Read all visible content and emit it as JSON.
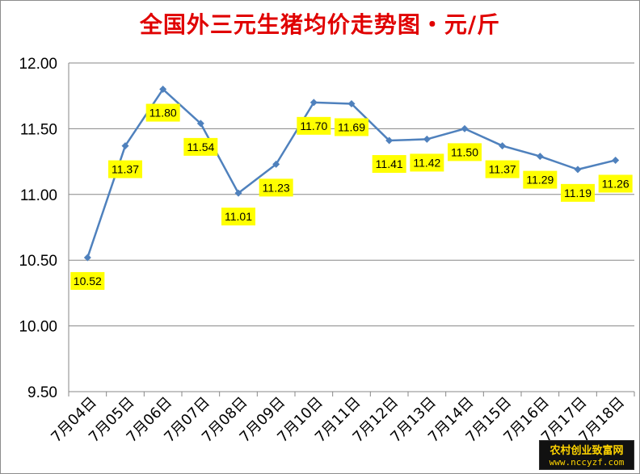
{
  "chart_data": {
    "type": "line",
    "title": "全国外三元生猪均价走势图・元/斤",
    "xlabel": "",
    "ylabel": "",
    "categories": [
      "7月04日",
      "7月05日",
      "7月06日",
      "7月07日",
      "7月08日",
      "7月09日",
      "7月10日",
      "7月11日",
      "7月12日",
      "7月13日",
      "7月14日",
      "7月15日",
      "7月16日",
      "7月17日",
      "7月18日"
    ],
    "values": [
      10.52,
      11.37,
      11.8,
      11.54,
      11.01,
      11.23,
      11.7,
      11.69,
      11.41,
      11.42,
      11.5,
      11.37,
      11.29,
      11.19,
      11.26
    ],
    "data_labels": [
      "10.52",
      "11.37",
      "11.80",
      "11.54",
      "11.01",
      "11.23",
      "11.70",
      "11.69",
      "11.41",
      "11.42",
      "11.50",
      "11.37",
      "11.29",
      "11.19",
      "11.26"
    ],
    "ylim": [
      9.5,
      12.0
    ],
    "yticks": [
      "9.50",
      "10.00",
      "10.50",
      "11.00",
      "11.50",
      "12.00"
    ],
    "ytick_values": [
      9.5,
      10.0,
      10.5,
      11.0,
      11.5,
      12.0
    ],
    "grid": true,
    "legend": "none",
    "colors": {
      "line": "#4f81bd",
      "label_bg": "#ffff00",
      "title": "#e00000",
      "grid": "#878787"
    }
  },
  "watermark": {
    "line1": "农村创业致富网",
    "line2": "www.nccyzf.com"
  }
}
